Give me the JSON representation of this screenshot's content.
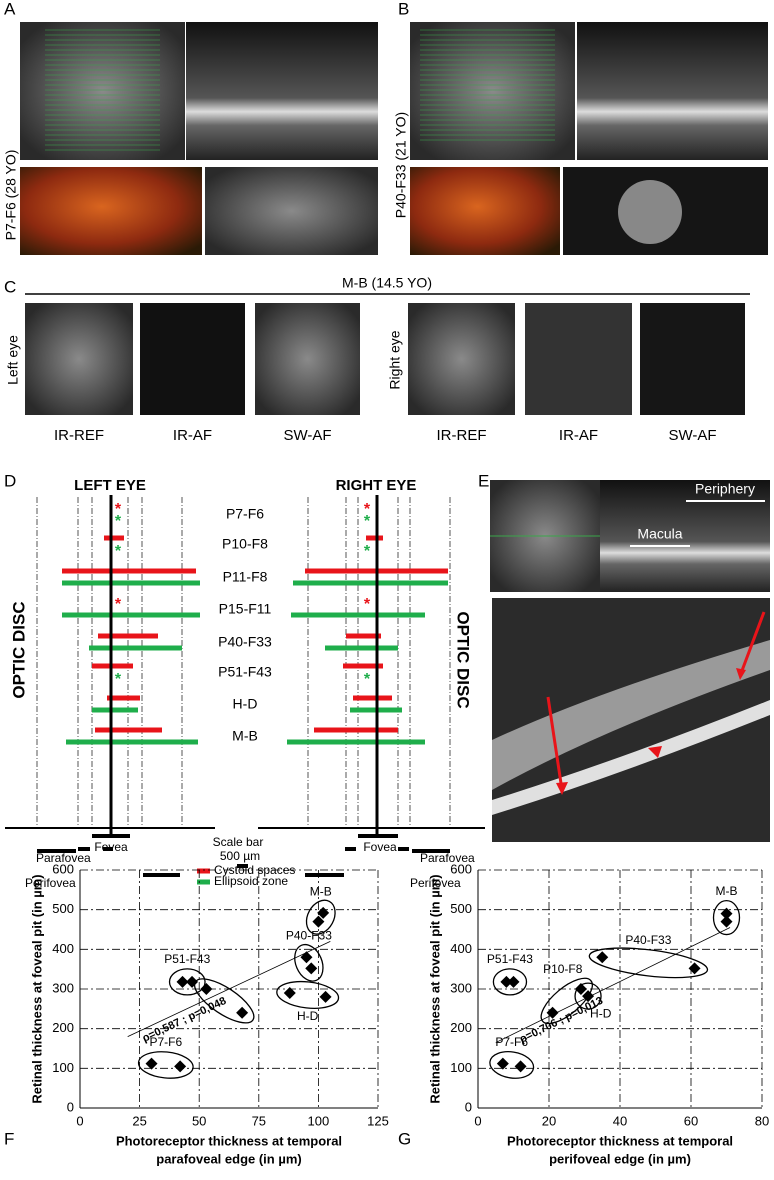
{
  "panels": {
    "a": {
      "letter": "A",
      "subject": "P7-F6 (28 YO)"
    },
    "b": {
      "letter": "B",
      "subject": "P40-F33 (21 YO)"
    },
    "c": {
      "letter": "C",
      "subject": "M-B (14.5 YO)",
      "left_eye": "Left eye",
      "right_eye": "Right eye",
      "image_labels": [
        "IR-REF",
        "IR-AF",
        "SW-AF",
        "IR-REF",
        "IR-AF",
        "SW-AF"
      ]
    },
    "d": {
      "letter": "D",
      "left_header": "LEFT EYE",
      "right_header": "RIGHT EYE",
      "optic_disc": "OPTIC DISC",
      "patients": [
        "P7-F6",
        "P10-F8",
        "P11-F8",
        "P15-F11",
        "P40-F33",
        "P51-F43",
        "H-D",
        "M-B"
      ],
      "fovea": "Fovea",
      "parafovea": "Parafovea",
      "perifovea": "Perifovea",
      "scale_bar": "Scale bar",
      "scale_value": "500 µm",
      "legend": [
        "Cystoid spaces",
        "Ellipsoid zone"
      ],
      "legend_colors": [
        "#e8141a",
        "#1fae4b"
      ]
    },
    "e": {
      "letter": "E",
      "periphery": "Periphery",
      "macula": "Macula",
      "optic_disc": "OPTIC DISC"
    },
    "f": {
      "letter": "F"
    },
    "g": {
      "letter": "G"
    }
  },
  "chart_data": [
    {
      "type": "scatter",
      "ylabel": "Retinal thickness at foveal pit (in µm)",
      "xlabel": [
        "Photoreceptor thickness at temporal",
        "parafoveal edge (in µm)"
      ],
      "xlim": [
        0,
        125
      ],
      "xticks": [
        0,
        25,
        50,
        75,
        100,
        125
      ],
      "ylim": [
        0,
        600
      ],
      "yticks": [
        0,
        100,
        200,
        300,
        400,
        500,
        600
      ],
      "grid": true,
      "color": "#000000",
      "annotation": "ρ=0,587 ; p=0,048",
      "trend": {
        "x": [
          20,
          105
        ],
        "values": [
          180,
          420
        ]
      },
      "groups": [
        {
          "name": "P7-F6",
          "x": [
            30,
            42
          ],
          "values": [
            112,
            105
          ]
        },
        {
          "name": "P51-F43",
          "x": [
            43,
            47
          ],
          "values": [
            318,
            318
          ]
        },
        {
          "name": null,
          "x": [
            53,
            68
          ],
          "values": [
            300,
            240
          ]
        },
        {
          "name": "M-B",
          "x": [
            100,
            102
          ],
          "values": [
            470,
            492
          ]
        },
        {
          "name": "P40-F33",
          "x": [
            95,
            97
          ],
          "values": [
            380,
            352
          ]
        },
        {
          "name": "H-D",
          "x": [
            88,
            103
          ],
          "values": [
            290,
            280
          ]
        }
      ]
    },
    {
      "type": "scatter",
      "ylabel": "Retinal thickness at foveal pit (in µm)",
      "xlabel": [
        "Photoreceptor thickness at temporal",
        "perifoveal edge (in µm)"
      ],
      "xlim": [
        0,
        80
      ],
      "xticks": [
        0,
        20,
        40,
        60,
        80
      ],
      "ylim": [
        0,
        600
      ],
      "yticks": [
        0,
        100,
        200,
        300,
        400,
        500,
        600
      ],
      "grid": true,
      "color": "#000000",
      "annotation": "ρ=0,706 ; p=0,013",
      "trend": {
        "x": [
          5,
          71
        ],
        "values": [
          165,
          455
        ]
      },
      "groups": [
        {
          "name": "P7-F6",
          "x": [
            7,
            12
          ],
          "values": [
            112,
            105
          ]
        },
        {
          "name": "P51-F43",
          "x": [
            8,
            10
          ],
          "values": [
            318,
            318
          ]
        },
        {
          "name": "P10-F8",
          "x": [
            21,
            29
          ],
          "values": [
            240,
            300
          ]
        },
        {
          "name": "H-D",
          "x": [
            31
          ],
          "values": [
            282
          ]
        },
        {
          "name": "P40-F33",
          "x": [
            35,
            61
          ],
          "values": [
            380,
            352
          ]
        },
        {
          "name": "M-B",
          "x": [
            70,
            70
          ],
          "values": [
            470,
            490
          ]
        }
      ]
    }
  ]
}
